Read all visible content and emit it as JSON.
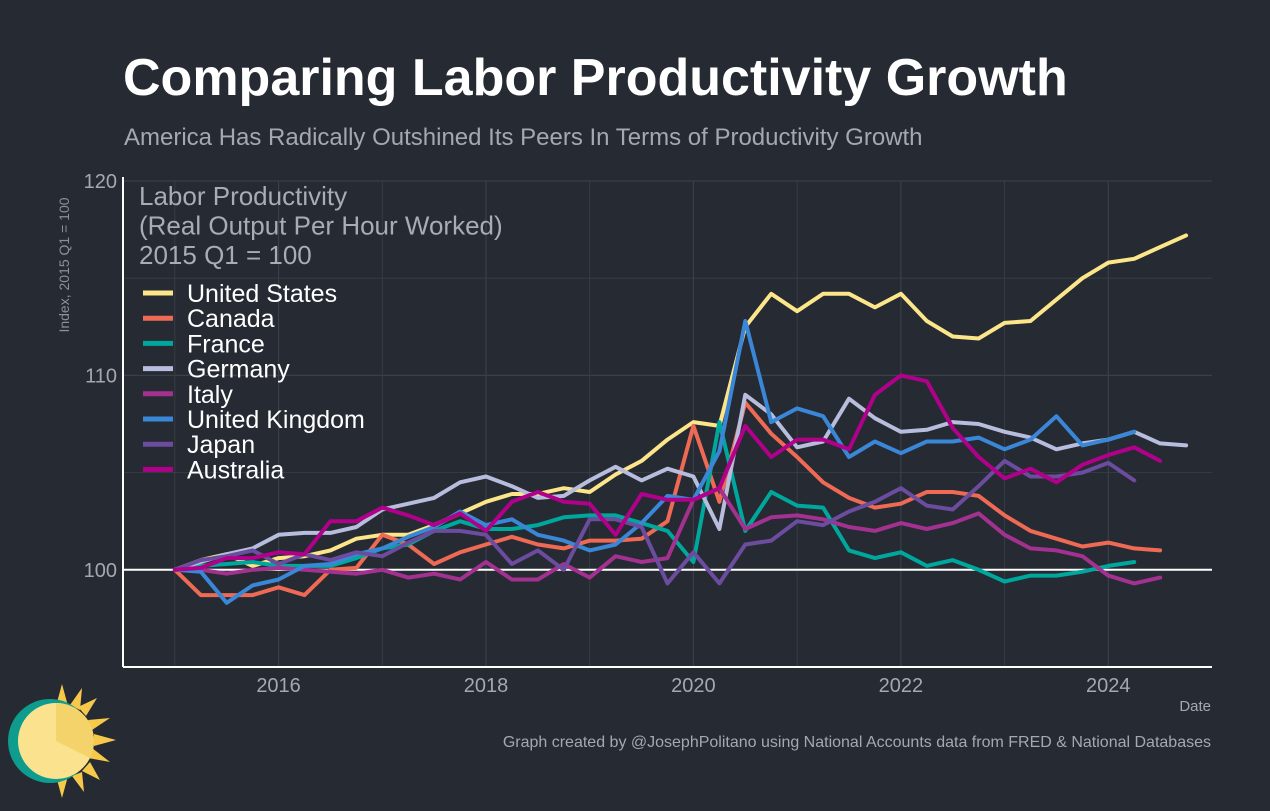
{
  "header": {
    "title": "Comparing Labor Productivity Growth",
    "subtitle": "America Has Radically Outshined Its Peers In Terms of Productivity Growth"
  },
  "footer": {
    "x_axis_name": "Date",
    "credit": "Graph created by @JosephPolitano using National Accounts data from FRED & National Databases"
  },
  "colors": {
    "background": "#252a33",
    "grid": "#3a3f48",
    "axis": "#ffffff",
    "United States": "#fde68a",
    "Canada": "#ee6a55",
    "France": "#00a79d",
    "Germany": "#b8bddd",
    "Italy": "#a3318f",
    "United Kingdom": "#3a87d8",
    "Japan": "#6c4c9e",
    "Australia": "#b1008a"
  },
  "chart_data": {
    "type": "line",
    "ylabel": "Index, 2015 Q1 = 100",
    "xlabel": "Date",
    "annotation": [
      "Labor Productivity",
      "(Real Output Per Hour Worked)",
      "2015 Q1 = 100"
    ],
    "ylim": [
      95,
      120
    ],
    "xlim": [
      2014.5,
      2025
    ],
    "yticks": [
      100,
      110,
      120
    ],
    "xticks": [
      2016,
      2018,
      2020,
      2022,
      2024
    ],
    "grid": true,
    "legend_position": "top-left",
    "reference_line": 100,
    "x_start": 2015.0,
    "x_step": 0.25,
    "series": [
      {
        "name": "United States",
        "values": [
          100.0,
          100.5,
          100.8,
          100.2,
          100.6,
          100.7,
          101.0,
          101.6,
          101.8,
          101.8,
          102.3,
          102.9,
          103.5,
          103.9,
          103.9,
          104.2,
          104.0,
          104.9,
          105.6,
          106.7,
          107.6,
          107.4,
          112.5,
          114.2,
          113.3,
          114.2,
          114.2,
          113.5,
          114.2,
          112.8,
          112.0,
          111.9,
          112.7,
          112.8,
          113.9,
          115.0,
          115.8,
          116.0,
          116.6,
          117.2
        ]
      },
      {
        "name": "Canada",
        "values": [
          100.0,
          98.7,
          98.7,
          98.7,
          99.1,
          98.7,
          100.0,
          100.1,
          101.8,
          101.3,
          100.3,
          100.9,
          101.3,
          101.7,
          101.3,
          101.1,
          101.5,
          101.5,
          101.6,
          102.5,
          107.4,
          103.5,
          108.6,
          107.0,
          105.8,
          104.5,
          103.7,
          103.2,
          103.4,
          104.0,
          104.0,
          103.8,
          102.8,
          102.0,
          101.6,
          101.2,
          101.4,
          101.1,
          101.0
        ]
      },
      {
        "name": "France",
        "values": [
          100.0,
          100.2,
          100.3,
          100.4,
          100.2,
          100.2,
          100.2,
          100.6,
          101.1,
          101.3,
          102.0,
          102.5,
          102.1,
          102.1,
          102.3,
          102.7,
          102.8,
          102.8,
          102.4,
          102.0,
          100.4,
          107.6,
          102.0,
          104.0,
          103.3,
          103.2,
          101.0,
          100.6,
          100.9,
          100.2,
          100.5,
          100.0,
          99.4,
          99.7,
          99.7,
          99.9,
          100.2,
          100.4
        ]
      },
      {
        "name": "Germany",
        "values": [
          100.0,
          100.4,
          100.8,
          101.1,
          101.8,
          101.9,
          101.9,
          102.2,
          103.1,
          103.4,
          103.7,
          104.5,
          104.8,
          104.3,
          103.7,
          103.8,
          104.6,
          105.3,
          104.6,
          105.2,
          104.8,
          102.1,
          109.0,
          108.0,
          106.3,
          106.6,
          108.8,
          107.8,
          107.1,
          107.2,
          107.6,
          107.5,
          107.1,
          106.8,
          106.2,
          106.5,
          106.7,
          107.1,
          106.5,
          106.4
        ]
      },
      {
        "name": "Italy",
        "values": [
          100.0,
          100.0,
          99.8,
          100.0,
          100.1,
          100.0,
          99.9,
          99.8,
          100.0,
          99.6,
          99.8,
          99.5,
          100.4,
          99.5,
          99.5,
          100.3,
          99.6,
          100.7,
          100.4,
          100.6,
          103.6,
          104.2,
          102.1,
          102.7,
          102.8,
          102.6,
          102.2,
          102.0,
          102.4,
          102.1,
          102.4,
          102.9,
          101.8,
          101.1,
          101.0,
          100.7,
          99.7,
          99.3,
          99.6
        ]
      },
      {
        "name": "United Kingdom",
        "values": [
          100.0,
          99.9,
          98.3,
          99.2,
          99.5,
          100.2,
          100.3,
          100.8,
          101.1,
          101.7,
          102.2,
          103.0,
          102.3,
          102.6,
          101.8,
          101.5,
          101.0,
          101.3,
          102.4,
          103.8,
          103.6,
          106.1,
          112.8,
          107.6,
          108.3,
          107.9,
          105.8,
          106.6,
          106.0,
          106.6,
          106.6,
          106.8,
          106.2,
          106.7,
          107.9,
          106.4,
          106.7,
          107.1
        ]
      },
      {
        "name": "Japan",
        "values": [
          100.0,
          100.5,
          100.7,
          101.0,
          100.3,
          100.8,
          100.5,
          100.9,
          100.7,
          101.4,
          102.0,
          102.0,
          101.8,
          100.3,
          101.0,
          100.0,
          102.6,
          102.6,
          102.2,
          99.3,
          100.9,
          99.3,
          101.3,
          101.5,
          102.5,
          102.3,
          103.0,
          103.5,
          104.2,
          103.3,
          103.1,
          104.3,
          105.6,
          104.8,
          104.8,
          105.0,
          105.5,
          104.6
        ]
      },
      {
        "name": "Australia",
        "values": [
          100.0,
          100.1,
          100.6,
          100.6,
          100.9,
          100.8,
          102.5,
          102.5,
          103.2,
          102.8,
          102.3,
          102.9,
          102.0,
          103.5,
          104.0,
          103.5,
          103.4,
          101.8,
          103.9,
          103.6,
          103.6,
          104.2,
          107.4,
          105.8,
          106.7,
          106.7,
          106.2,
          109.0,
          110.0,
          109.7,
          107.3,
          105.8,
          104.7,
          105.2,
          104.5,
          105.4,
          105.9,
          106.3,
          105.6
        ]
      }
    ]
  }
}
